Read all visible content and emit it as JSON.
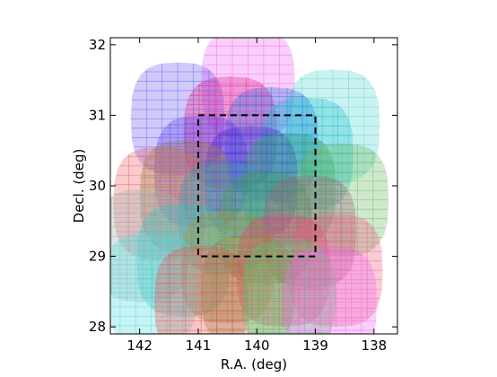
{
  "chart_data": {
    "type": "scatter",
    "title": "",
    "xlabel": "R.A. (deg)",
    "ylabel": "Decl. (deg)",
    "xlim": [
      142.5,
      137.6
    ],
    "ylim": [
      27.9,
      32.1
    ],
    "x_inverted": true,
    "xticks": [
      142,
      141,
      140,
      139,
      138
    ],
    "yticks": [
      28,
      29,
      30,
      31,
      32
    ],
    "xtick_labels": [
      "142",
      "141",
      "140",
      "139",
      "138"
    ],
    "ytick_labels": [
      "28",
      "29",
      "30",
      "31",
      "32"
    ],
    "grid": false,
    "legend": "none",
    "highlight_box": {
      "ra_min": 139.0,
      "ra_max": 141.0,
      "dec_min": 29.0,
      "dec_max": 31.0,
      "style": "dashed",
      "color": "#000000"
    },
    "fields": [
      {
        "ra": 140.15,
        "dec": 31.45,
        "color": "#ee66ee"
      },
      {
        "ra": 138.7,
        "dec": 30.85,
        "color": "#5ad8d0"
      },
      {
        "ra": 141.35,
        "dec": 30.95,
        "color": "#6a5aee"
      },
      {
        "ra": 140.45,
        "dec": 30.75,
        "color": "#e0208a"
      },
      {
        "ra": 139.75,
        "dec": 30.6,
        "color": "#2a6ee0"
      },
      {
        "ra": 139.15,
        "dec": 30.45,
        "color": "#20c0d0"
      },
      {
        "ra": 140.95,
        "dec": 30.2,
        "color": "#5a40ea"
      },
      {
        "ra": 140.1,
        "dec": 30.05,
        "color": "#3a2ad8"
      },
      {
        "ra": 139.45,
        "dec": 29.95,
        "color": "#30a070"
      },
      {
        "ra": 138.55,
        "dec": 29.8,
        "color": "#6ab860"
      },
      {
        "ra": 141.65,
        "dec": 29.75,
        "color": "#e86060"
      },
      {
        "ra": 141.2,
        "dec": 29.85,
        "color": "#a07850"
      },
      {
        "ra": 140.55,
        "dec": 29.55,
        "color": "#30a0b0"
      },
      {
        "ra": 139.85,
        "dec": 29.4,
        "color": "#40a050"
      },
      {
        "ra": 139.1,
        "dec": 29.35,
        "color": "#a06878"
      },
      {
        "ra": 141.95,
        "dec": 29.15,
        "color": "#a0b0b0"
      },
      {
        "ra": 141.25,
        "dec": 28.95,
        "color": "#40c0c0"
      },
      {
        "ra": 140.5,
        "dec": 28.85,
        "color": "#a0a040"
      },
      {
        "ra": 139.55,
        "dec": 28.8,
        "color": "#ee4070"
      },
      {
        "ra": 138.65,
        "dec": 28.8,
        "color": "#ee6080"
      },
      {
        "ra": 141.8,
        "dec": 28.55,
        "color": "#50dada"
      },
      {
        "ra": 140.95,
        "dec": 28.35,
        "color": "#ee4a4a"
      },
      {
        "ra": 140.15,
        "dec": 28.5,
        "color": "#a07848"
      },
      {
        "ra": 139.45,
        "dec": 28.45,
        "color": "#50c870"
      },
      {
        "ra": 138.75,
        "dec": 28.35,
        "color": "#ee66ee"
      }
    ]
  }
}
